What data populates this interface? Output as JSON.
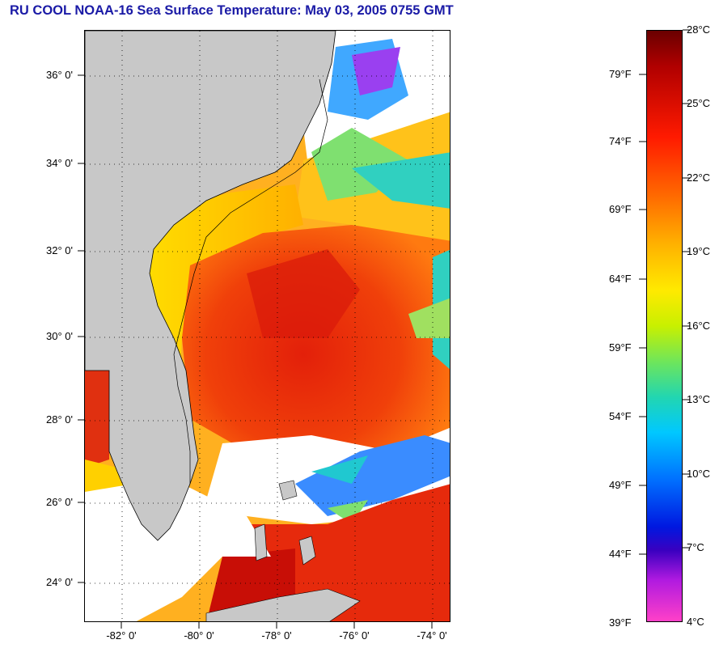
{
  "title": "RU COOL  NOAA-16  Sea Surface Temperature:  May 03, 2005 0755 GMT",
  "map": {
    "lat_ticks": [
      "36° 0'",
      "34° 0'",
      "32° 0'",
      "30° 0'",
      "28° 0'",
      "26° 0'",
      "24° 0'"
    ],
    "lon_ticks": [
      "-82° 0'",
      "-80° 0'",
      "-78° 0'",
      "-76° 0'",
      "-74° 0'"
    ],
    "colors": {
      "land": "#c8c8c8",
      "cloud": "#ffffff",
      "gulf_stream": "#e0240c",
      "shelf_warm": "#ff7a10",
      "shelf_cool": "#ffd400"
    }
  },
  "colorbar": {
    "celsius": [
      "28°C",
      "25°C",
      "22°C",
      "19°C",
      "16°C",
      "13°C",
      "10°C",
      "7°C",
      "4°C"
    ],
    "fahrenheit": [
      "79°F",
      "74°F",
      "69°F",
      "64°F",
      "59°F",
      "54°F",
      "49°F",
      "44°F",
      "39°F"
    ]
  }
}
